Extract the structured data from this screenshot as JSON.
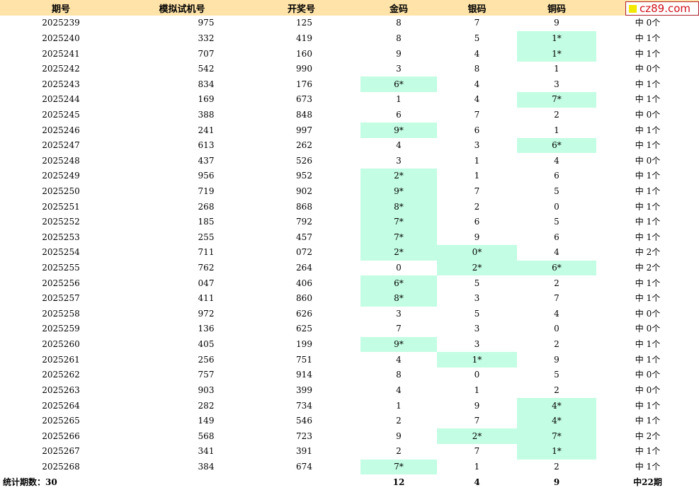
{
  "header": {
    "issue": "期号",
    "sim": "模拟试机号",
    "draw": "开奖号",
    "gold": "金码",
    "silver": "银码",
    "bronze": "铜码"
  },
  "logo": {
    "text": "cz89.com"
  },
  "colors": {
    "header_bg": "#ffe3a8",
    "hit_bg": "#c3fde3",
    "logo_red": "#d0101a",
    "logo_yellow": "#f2e800"
  },
  "rows": [
    {
      "issue": "2025239",
      "sim": "975",
      "draw": "125",
      "gold": "8",
      "silver": "7",
      "bronze": "9",
      "hits": "中 0个"
    },
    {
      "issue": "2025240",
      "sim": "332",
      "draw": "419",
      "gold": "8",
      "silver": "5",
      "bronze": "1*",
      "hits": "中 1个"
    },
    {
      "issue": "2025241",
      "sim": "707",
      "draw": "160",
      "gold": "9",
      "silver": "4",
      "bronze": "1*",
      "hits": "中 1个"
    },
    {
      "issue": "2025242",
      "sim": "542",
      "draw": "990",
      "gold": "3",
      "silver": "8",
      "bronze": "1",
      "hits": "中 0个"
    },
    {
      "issue": "2025243",
      "sim": "834",
      "draw": "176",
      "gold": "6*",
      "silver": "4",
      "bronze": "3",
      "hits": "中 1个"
    },
    {
      "issue": "2025244",
      "sim": "169",
      "draw": "673",
      "gold": "1",
      "silver": "4",
      "bronze": "7*",
      "hits": "中 1个"
    },
    {
      "issue": "2025245",
      "sim": "388",
      "draw": "848",
      "gold": "6",
      "silver": "7",
      "bronze": "2",
      "hits": "中 0个"
    },
    {
      "issue": "2025246",
      "sim": "241",
      "draw": "997",
      "gold": "9*",
      "silver": "6",
      "bronze": "1",
      "hits": "中 1个"
    },
    {
      "issue": "2025247",
      "sim": "613",
      "draw": "262",
      "gold": "4",
      "silver": "3",
      "bronze": "6*",
      "hits": "中 1个"
    },
    {
      "issue": "2025248",
      "sim": "437",
      "draw": "526",
      "gold": "3",
      "silver": "1",
      "bronze": "4",
      "hits": "中 0个"
    },
    {
      "issue": "2025249",
      "sim": "956",
      "draw": "952",
      "gold": "2*",
      "silver": "1",
      "bronze": "6",
      "hits": "中 1个"
    },
    {
      "issue": "2025250",
      "sim": "719",
      "draw": "902",
      "gold": "9*",
      "silver": "7",
      "bronze": "5",
      "hits": "中 1个"
    },
    {
      "issue": "2025251",
      "sim": "268",
      "draw": "868",
      "gold": "8*",
      "silver": "2",
      "bronze": "0",
      "hits": "中 1个"
    },
    {
      "issue": "2025252",
      "sim": "185",
      "draw": "792",
      "gold": "7*",
      "silver": "6",
      "bronze": "5",
      "hits": "中 1个"
    },
    {
      "issue": "2025253",
      "sim": "255",
      "draw": "457",
      "gold": "7*",
      "silver": "9",
      "bronze": "6",
      "hits": "中 1个"
    },
    {
      "issue": "2025254",
      "sim": "711",
      "draw": "072",
      "gold": "2*",
      "silver": "0*",
      "bronze": "4",
      "hits": "中 2个"
    },
    {
      "issue": "2025255",
      "sim": "762",
      "draw": "264",
      "gold": "0",
      "silver": "2*",
      "bronze": "6*",
      "hits": "中 2个"
    },
    {
      "issue": "2025256",
      "sim": "047",
      "draw": "406",
      "gold": "6*",
      "silver": "5",
      "bronze": "2",
      "hits": "中 1个"
    },
    {
      "issue": "2025257",
      "sim": "411",
      "draw": "860",
      "gold": "8*",
      "silver": "3",
      "bronze": "7",
      "hits": "中 1个"
    },
    {
      "issue": "2025258",
      "sim": "972",
      "draw": "626",
      "gold": "3",
      "silver": "5",
      "bronze": "4",
      "hits": "中 0个"
    },
    {
      "issue": "2025259",
      "sim": "136",
      "draw": "625",
      "gold": "7",
      "silver": "3",
      "bronze": "0",
      "hits": "中 0个"
    },
    {
      "issue": "2025260",
      "sim": "405",
      "draw": "199",
      "gold": "9*",
      "silver": "3",
      "bronze": "2",
      "hits": "中 1个"
    },
    {
      "issue": "2025261",
      "sim": "256",
      "draw": "751",
      "gold": "4",
      "silver": "1*",
      "bronze": "9",
      "hits": "中 1个"
    },
    {
      "issue": "2025262",
      "sim": "757",
      "draw": "914",
      "gold": "8",
      "silver": "0",
      "bronze": "5",
      "hits": "中 0个"
    },
    {
      "issue": "2025263",
      "sim": "903",
      "draw": "399",
      "gold": "4",
      "silver": "1",
      "bronze": "2",
      "hits": "中 0个"
    },
    {
      "issue": "2025264",
      "sim": "282",
      "draw": "734",
      "gold": "1",
      "silver": "9",
      "bronze": "4*",
      "hits": "中 1个"
    },
    {
      "issue": "2025265",
      "sim": "149",
      "draw": "546",
      "gold": "2",
      "silver": "7",
      "bronze": "4*",
      "hits": "中 1个"
    },
    {
      "issue": "2025266",
      "sim": "568",
      "draw": "723",
      "gold": "9",
      "silver": "2*",
      "bronze": "7*",
      "hits": "中 2个"
    },
    {
      "issue": "2025267",
      "sim": "341",
      "draw": "391",
      "gold": "2",
      "silver": "7",
      "bronze": "1*",
      "hits": "中 1个"
    },
    {
      "issue": "2025268",
      "sim": "384",
      "draw": "674",
      "gold": "7*",
      "silver": "1",
      "bronze": "2",
      "hits": "中 1个"
    }
  ],
  "footer": {
    "label": "统计期数：30",
    "gold_total": "12",
    "silver_total": "4",
    "bronze_total": "9",
    "periods": "中22期"
  }
}
